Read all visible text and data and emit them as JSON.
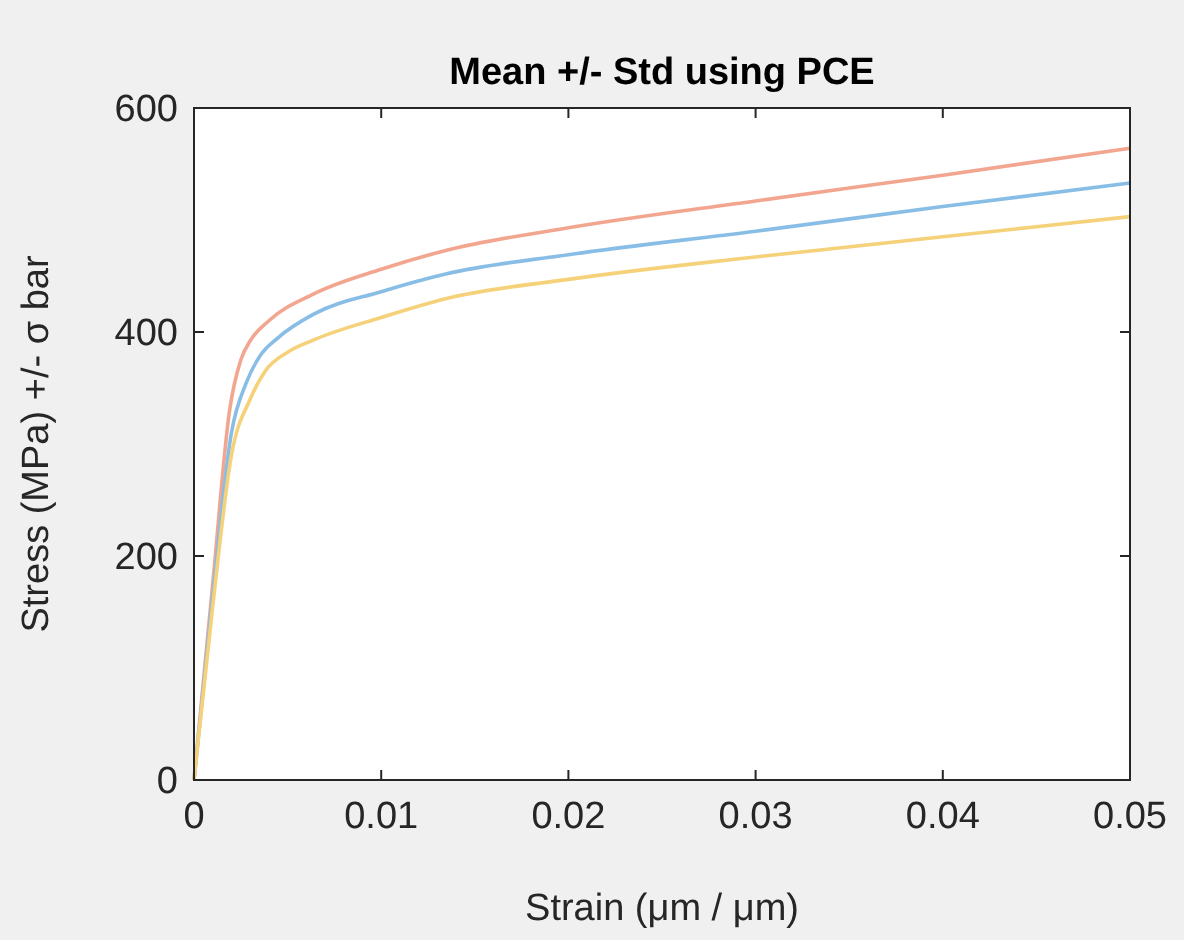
{
  "chart_data": {
    "type": "line",
    "title": "Mean +/- Std using PCE",
    "xlabel": "Strain (μm / μm)",
    "ylabel": "Stress (MPa) +/- σ bar",
    "xlim": [
      0,
      0.05
    ],
    "xticks": [
      0,
      0.01,
      0.02,
      0.03,
      0.04,
      0.05
    ],
    "ylim": [
      0,
      600
    ],
    "yticks": [
      0,
      200,
      400,
      600
    ],
    "grid": false,
    "marker": "none",
    "line_style": "solid",
    "series": [
      {
        "color": "#f2a68f",
        "x": [
          0,
          0.001,
          0.0019,
          0.0025,
          0.003,
          0.004,
          0.0064,
          0.01,
          0.0135,
          0.02,
          0.03,
          0.04,
          0.05
        ],
        "values": [
          0,
          175,
          330,
          375,
          392,
          410,
          434,
          456,
          473,
          493,
          517,
          540,
          564
        ]
      },
      {
        "color": "#88bde6",
        "x": [
          0,
          0.001,
          0.002,
          0.0028,
          0.0035,
          0.0045,
          0.0064,
          0.01,
          0.0135,
          0.02,
          0.03,
          0.04,
          0.05
        ],
        "values": [
          0,
          165,
          310,
          355,
          378,
          395,
          416,
          436,
          452,
          469,
          490,
          512,
          533
        ]
      },
      {
        "color": "#f5d27a",
        "x": [
          0,
          0.001,
          0.002,
          0.003,
          0.0038,
          0.005,
          0.0064,
          0.01,
          0.0135,
          0.02,
          0.03,
          0.04,
          0.05
        ],
        "values": [
          0,
          155,
          290,
          340,
          365,
          382,
          393,
          413,
          430,
          447,
          467,
          485,
          503
        ]
      }
    ]
  }
}
